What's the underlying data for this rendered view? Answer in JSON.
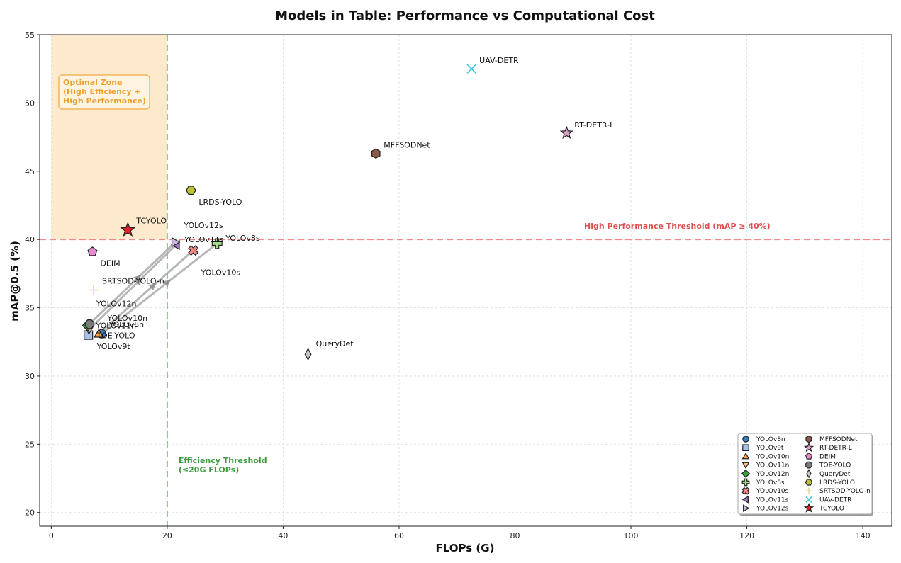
{
  "chart_data": {
    "type": "scatter",
    "title": "Models in Table: Performance vs Computational Cost",
    "xlabel": "FLOPs (G)",
    "ylabel": "mAP@0.5 (%)",
    "xlim": [
      -2,
      145
    ],
    "ylim": [
      19,
      55
    ],
    "xticks": [
      0,
      20,
      40,
      60,
      80,
      100,
      120,
      140
    ],
    "yticks": [
      20,
      25,
      30,
      35,
      40,
      45,
      50,
      55
    ],
    "grid": true,
    "legend_position": "bottom-right",
    "series": [
      {
        "name": "YOLOv8n",
        "marker": "circle",
        "color": "#3a7bbf",
        "x": 8.7,
        "y": 33.1
      },
      {
        "name": "YOLOv9t",
        "marker": "square",
        "color": "#a9c1e6",
        "x": 6.4,
        "y": 33.0
      },
      {
        "name": "YOLOv10n",
        "marker": "triangle-up",
        "color": "#f5a04a",
        "x": 8.2,
        "y": 33.1
      },
      {
        "name": "YOLOv11n",
        "marker": "triangle-down",
        "color": "#f7c08a",
        "x": 6.5,
        "y": 33.4
      },
      {
        "name": "YOLOv12n",
        "marker": "diamond",
        "color": "#3aa53a",
        "x": 6.3,
        "y": 33.7
      },
      {
        "name": "YOLOv8s",
        "marker": "plus",
        "color": "#a3dc8a",
        "x": 28.6,
        "y": 39.7
      },
      {
        "name": "YOLOv10s",
        "marker": "x-filled",
        "color": "#f08a84",
        "x": 24.5,
        "y": 39.2
      },
      {
        "name": "YOLOv11s",
        "marker": "triangle-left",
        "color": "#9b7ac2",
        "x": 21.5,
        "y": 39.6
      },
      {
        "name": "YOLOv12s",
        "marker": "triangle-right",
        "color": "#c8b9e0",
        "x": 21.4,
        "y": 39.8
      },
      {
        "name": "MFFSODNet",
        "marker": "hexagon",
        "color": "#8c5a4a",
        "x": 56.0,
        "y": 46.3
      },
      {
        "name": "RT-DETR-L",
        "marker": "star",
        "color": "#d9a3c8",
        "x": 88.9,
        "y": 47.8
      },
      {
        "name": "DEIM",
        "marker": "pentagon",
        "color": "#e88ad0",
        "x": 7.1,
        "y": 39.1
      },
      {
        "name": "TOE-YOLO",
        "marker": "octagon",
        "color": "#7a7a7a",
        "x": 6.6,
        "y": 33.8
      },
      {
        "name": "QueryDet",
        "marker": "thin-diamond",
        "color": "#c8c8c8",
        "x": 44.3,
        "y": 31.6
      },
      {
        "name": "LRDS-YOLO",
        "marker": "hexagon2",
        "color": "#bcc23a",
        "x": 24.1,
        "y": 43.6
      },
      {
        "name": "SRTSOD-YOLO-n",
        "marker": "plus-thin",
        "color": "#e8d08a",
        "x": 7.3,
        "y": 36.3
      },
      {
        "name": "UAV-DETR",
        "marker": "x-thin",
        "color": "#3fc9d6",
        "x": 72.5,
        "y": 52.5
      },
      {
        "name": "TCYOLO",
        "marker": "star",
        "color": "#e0202a",
        "x": 13.2,
        "y": 40.7
      }
    ],
    "point_labels": [
      {
        "text": "YOLOv8n",
        "x": 8.7,
        "y": 33.1
      },
      {
        "text": "YOLOv9t",
        "x": 6.4,
        "y": 33.0
      },
      {
        "text": "YOLOv10n",
        "x": 8.2,
        "y": 33.1
      },
      {
        "text": "YOLOv11n",
        "x": 6.5,
        "y": 33.4
      },
      {
        "text": "YOLOv12n",
        "x": 6.3,
        "y": 33.7
      },
      {
        "text": "YOLOv8s",
        "x": 28.6,
        "y": 39.7
      },
      {
        "text": "YOLOv10s",
        "x": 24.5,
        "y": 39.2
      },
      {
        "text": "YOLOv11s",
        "x": 21.5,
        "y": 39.6
      },
      {
        "text": "YOLOv12s",
        "x": 21.4,
        "y": 39.8
      },
      {
        "text": "MFFSODNet",
        "x": 56.0,
        "y": 46.3
      },
      {
        "text": "RT-DETR-L",
        "x": 88.9,
        "y": 47.8
      },
      {
        "text": "DEIM",
        "x": 7.1,
        "y": 39.1
      },
      {
        "text": "TOE-YOLO",
        "x": 6.6,
        "y": 33.8
      },
      {
        "text": "QueryDet",
        "x": 44.3,
        "y": 31.6
      },
      {
        "text": "LRDS-YOLO",
        "x": 24.1,
        "y": 43.6
      },
      {
        "text": "SRTSOD-YOLO-n",
        "x": 7.3,
        "y": 36.3
      },
      {
        "text": "UAV-DETR",
        "x": 72.5,
        "y": 52.5
      },
      {
        "text": "TCYOLO",
        "x": 13.2,
        "y": 40.7
      }
    ],
    "connections": [
      {
        "from": "YOLOv8n",
        "to": "YOLOv8s"
      },
      {
        "from": "YOLOv10n",
        "to": "YOLOv10s"
      },
      {
        "from": "YOLOv11n",
        "to": "YOLOv11s"
      },
      {
        "from": "YOLOv12n",
        "to": "YOLOv12s"
      }
    ],
    "thresholds": {
      "performance": {
        "y": 40,
        "label": "High Performance Threshold (mAP ≥ 40%)",
        "color": "#e05050"
      },
      "efficiency": {
        "x": 20,
        "label_lines": [
          "Efficiency Threshold",
          "(≤20G FLOPs)"
        ],
        "color": "#5aaa5a"
      }
    },
    "optimal_zone": {
      "x_range": [
        0,
        20
      ],
      "y_range": [
        40,
        55
      ],
      "label_lines": [
        "Optimal Zone",
        "(High Efficiency +",
        "High Performance)"
      ],
      "color": "#f5a030"
    }
  }
}
